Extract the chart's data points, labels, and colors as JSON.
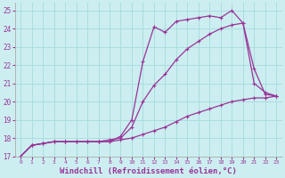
{
  "background_color": "#cceef0",
  "grid_color": "#aadddf",
  "line_color": "#993399",
  "xlim": [
    -0.5,
    23.5
  ],
  "ylim": [
    17,
    25.4
  ],
  "xlabel": "Windchill (Refroidissement éolien,°C)",
  "xlabel_fontsize": 6.5,
  "yticks": [
    17,
    18,
    19,
    20,
    21,
    22,
    23,
    24,
    25
  ],
  "xticks": [
    0,
    1,
    2,
    3,
    4,
    5,
    6,
    7,
    8,
    9,
    10,
    11,
    12,
    13,
    14,
    15,
    16,
    17,
    18,
    19,
    20,
    21,
    22,
    23
  ],
  "series": [
    {
      "x": [
        0,
        1,
        2,
        3,
        4,
        5,
        6,
        7,
        8,
        9,
        10,
        11,
        12,
        13,
        14,
        15,
        16,
        17,
        18,
        19,
        20,
        21,
        22,
        23
      ],
      "y": [
        17.0,
        17.6,
        17.7,
        17.8,
        17.8,
        17.8,
        17.8,
        17.8,
        17.8,
        18.1,
        19.0,
        22.2,
        24.1,
        23.8,
        24.4,
        24.5,
        24.6,
        24.7,
        24.6,
        25.0,
        24.3,
        21.0,
        20.5,
        20.3
      ]
    },
    {
      "x": [
        0,
        1,
        2,
        3,
        4,
        5,
        6,
        7,
        8,
        9,
        10,
        11,
        12,
        13,
        14,
        15,
        16,
        17,
        18,
        19,
        20,
        21,
        22,
        23
      ],
      "y": [
        17.0,
        17.6,
        17.7,
        17.8,
        17.8,
        17.8,
        17.8,
        17.8,
        17.9,
        18.0,
        18.6,
        20.0,
        20.9,
        21.5,
        22.3,
        22.9,
        23.3,
        23.7,
        24.0,
        24.2,
        24.3,
        21.8,
        20.4,
        20.3
      ]
    },
    {
      "x": [
        0,
        1,
        2,
        3,
        4,
        5,
        6,
        7,
        8,
        9,
        10,
        11,
        12,
        13,
        14,
        15,
        16,
        17,
        18,
        19,
        20,
        21,
        22,
        23
      ],
      "y": [
        17.0,
        17.6,
        17.7,
        17.8,
        17.8,
        17.8,
        17.8,
        17.8,
        17.8,
        17.9,
        18.0,
        18.2,
        18.4,
        18.6,
        18.9,
        19.2,
        19.4,
        19.6,
        19.8,
        20.0,
        20.1,
        20.2,
        20.2,
        20.3
      ]
    }
  ]
}
